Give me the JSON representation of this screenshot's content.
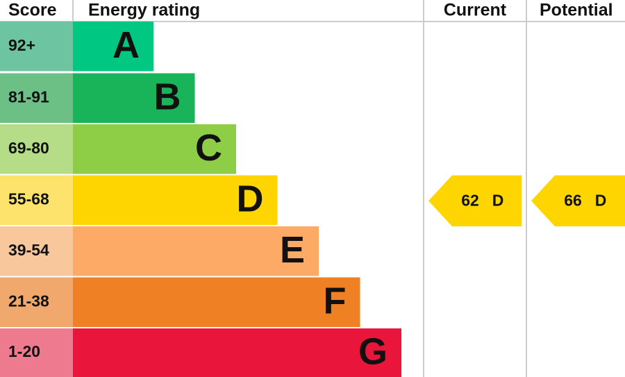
{
  "headers": {
    "score": "Score",
    "rating": "Energy rating",
    "current": "Current",
    "potential": "Potential"
  },
  "rows": [
    {
      "score": "92+",
      "letter": "A",
      "color": "#00c781",
      "score_color": "#6cc5a0"
    },
    {
      "score": "81-91",
      "letter": "B",
      "color": "#19b459",
      "score_color": "#6cbf85"
    },
    {
      "score": "69-80",
      "letter": "C",
      "color": "#8dce46",
      "score_color": "#b5dd88"
    },
    {
      "score": "55-68",
      "letter": "D",
      "color": "#ffd500",
      "score_color": "#fde36b"
    },
    {
      "score": "39-54",
      "letter": "E",
      "color": "#fcaa65",
      "score_color": "#f8c79c"
    },
    {
      "score": "21-38",
      "letter": "F",
      "color": "#ef8023",
      "score_color": "#f0a86c"
    },
    {
      "score": "1-20",
      "letter": "G",
      "color": "#e9153b",
      "score_color": "#ed7a8f"
    }
  ],
  "current": {
    "score": "62",
    "rating": "D"
  },
  "potential": {
    "score": "66",
    "rating": "D"
  }
}
